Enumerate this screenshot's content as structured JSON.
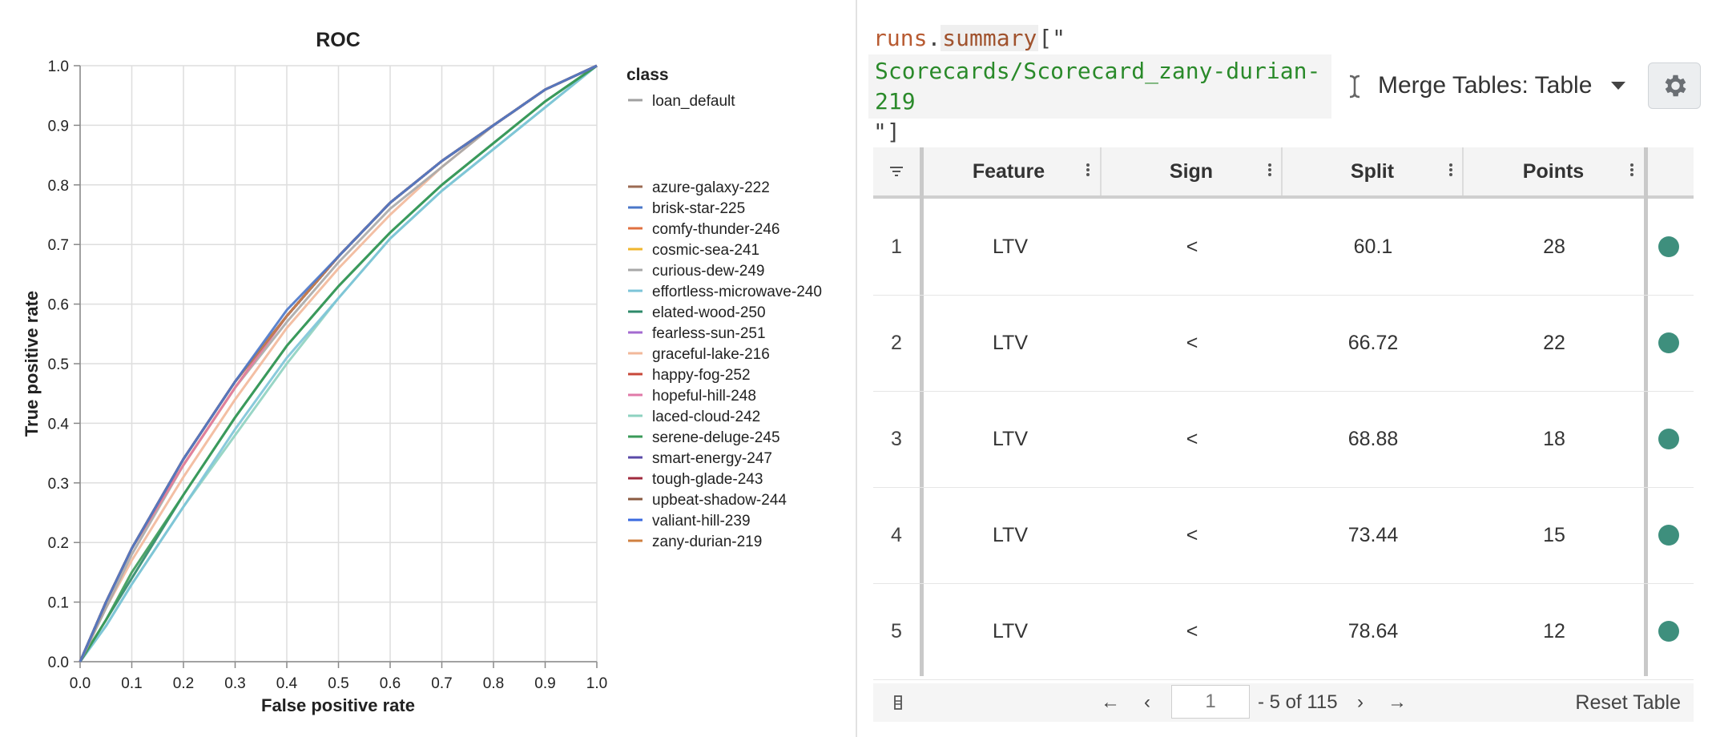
{
  "chart_data": {
    "type": "line",
    "title": "ROC",
    "xlabel": "False positive rate",
    "ylabel": "True positive rate",
    "xlim": [
      0,
      1
    ],
    "ylim": [
      0,
      1
    ],
    "xticks": [
      "0.0",
      "0.1",
      "0.2",
      "0.3",
      "0.4",
      "0.5",
      "0.6",
      "0.7",
      "0.8",
      "0.9",
      "1.0"
    ],
    "yticks": [
      "0.0",
      "0.1",
      "0.2",
      "0.3",
      "0.4",
      "0.5",
      "0.6",
      "0.7",
      "0.8",
      "0.9",
      "1.0"
    ],
    "grid": true,
    "legend_title": "class",
    "legend_placement": "right",
    "series": [
      {
        "name": "loan_default",
        "color": "#a0a0a0",
        "x": [],
        "y": []
      },
      {
        "name": "azure-galaxy-222",
        "color": "#9c6b53",
        "x": [
          0,
          0.05,
          0.1,
          0.2,
          0.3,
          0.4,
          0.5,
          0.6,
          0.7,
          0.8,
          0.9,
          1.0
        ],
        "y": [
          0,
          0.1,
          0.19,
          0.34,
          0.47,
          0.58,
          0.68,
          0.77,
          0.84,
          0.9,
          0.96,
          1.0
        ]
      },
      {
        "name": "brisk-star-225",
        "color": "#4a77c9",
        "x": [
          0,
          0.05,
          0.1,
          0.2,
          0.3,
          0.4,
          0.5,
          0.6,
          0.7,
          0.8,
          0.9,
          1.0
        ],
        "y": [
          0,
          0.1,
          0.19,
          0.34,
          0.47,
          0.59,
          0.68,
          0.77,
          0.84,
          0.9,
          0.96,
          1.0
        ]
      },
      {
        "name": "comfy-thunder-246",
        "color": "#e07040",
        "x": [
          0,
          0.05,
          0.1,
          0.2,
          0.3,
          0.4,
          0.5,
          0.6,
          0.7,
          0.8,
          0.9,
          1.0
        ],
        "y": [
          0,
          0.1,
          0.19,
          0.34,
          0.47,
          0.58,
          0.68,
          0.77,
          0.84,
          0.9,
          0.96,
          1.0
        ]
      },
      {
        "name": "cosmic-sea-241",
        "color": "#f0b62e",
        "x": [
          0,
          0.05,
          0.1,
          0.2,
          0.3,
          0.4,
          0.5,
          0.6,
          0.7,
          0.8,
          0.9,
          1.0
        ],
        "y": [
          0,
          0.1,
          0.19,
          0.33,
          0.46,
          0.58,
          0.68,
          0.77,
          0.84,
          0.9,
          0.96,
          1.0
        ]
      },
      {
        "name": "curious-dew-249",
        "color": "#a8a8a8",
        "x": [
          0,
          0.05,
          0.1,
          0.2,
          0.3,
          0.4,
          0.5,
          0.6,
          0.7,
          0.8,
          0.9,
          1.0
        ],
        "y": [
          0,
          0.09,
          0.18,
          0.33,
          0.46,
          0.57,
          0.67,
          0.76,
          0.83,
          0.9,
          0.96,
          1.0
        ]
      },
      {
        "name": "effortless-microwave-240",
        "color": "#7cc4d8",
        "x": [
          0,
          0.05,
          0.1,
          0.2,
          0.3,
          0.4,
          0.5,
          0.6,
          0.7,
          0.8,
          0.9,
          1.0
        ],
        "y": [
          0,
          0.06,
          0.13,
          0.26,
          0.39,
          0.51,
          0.61,
          0.71,
          0.79,
          0.86,
          0.93,
          1.0
        ]
      },
      {
        "name": "elated-wood-250",
        "color": "#2e8a6a",
        "x": [
          0,
          0.05,
          0.1,
          0.2,
          0.3,
          0.4,
          0.5,
          0.6,
          0.7,
          0.8,
          0.9,
          1.0
        ],
        "y": [
          0,
          0.07,
          0.14,
          0.28,
          0.41,
          0.53,
          0.63,
          0.72,
          0.8,
          0.87,
          0.94,
          1.0
        ]
      },
      {
        "name": "fearless-sun-251",
        "color": "#a46ad0",
        "x": [
          0,
          0.05,
          0.1,
          0.2,
          0.3,
          0.4,
          0.5,
          0.6,
          0.7,
          0.8,
          0.9,
          1.0
        ],
        "y": [
          0,
          0.1,
          0.19,
          0.34,
          0.47,
          0.58,
          0.68,
          0.77,
          0.84,
          0.9,
          0.96,
          1.0
        ]
      },
      {
        "name": "graceful-lake-216",
        "color": "#f2b89a",
        "x": [
          0,
          0.05,
          0.1,
          0.2,
          0.3,
          0.4,
          0.5,
          0.6,
          0.7,
          0.8,
          0.9,
          1.0
        ],
        "y": [
          0,
          0.09,
          0.17,
          0.31,
          0.44,
          0.56,
          0.66,
          0.75,
          0.83,
          0.9,
          0.96,
          1.0
        ]
      },
      {
        "name": "happy-fog-252",
        "color": "#c8483a",
        "x": [
          0,
          0.05,
          0.1,
          0.2,
          0.3,
          0.4,
          0.5,
          0.6,
          0.7,
          0.8,
          0.9,
          1.0
        ],
        "y": [
          0,
          0.1,
          0.19,
          0.34,
          0.47,
          0.58,
          0.68,
          0.77,
          0.84,
          0.9,
          0.96,
          1.0
        ]
      },
      {
        "name": "hopeful-hill-248",
        "color": "#e07aa8",
        "x": [
          0,
          0.05,
          0.1,
          0.2,
          0.3,
          0.4,
          0.5,
          0.6,
          0.7,
          0.8,
          0.9,
          1.0
        ],
        "y": [
          0,
          0.1,
          0.19,
          0.33,
          0.46,
          0.58,
          0.68,
          0.77,
          0.84,
          0.9,
          0.96,
          1.0
        ]
      },
      {
        "name": "laced-cloud-242",
        "color": "#8ed2c0",
        "x": [
          0,
          0.05,
          0.1,
          0.2,
          0.3,
          0.4,
          0.5,
          0.6,
          0.7,
          0.8,
          0.9,
          1.0
        ],
        "y": [
          0,
          0.06,
          0.13,
          0.26,
          0.38,
          0.5,
          0.61,
          0.71,
          0.79,
          0.86,
          0.93,
          1.0
        ]
      },
      {
        "name": "serene-deluge-245",
        "color": "#3a9a58",
        "x": [
          0,
          0.05,
          0.1,
          0.2,
          0.3,
          0.4,
          0.5,
          0.6,
          0.7,
          0.8,
          0.9,
          1.0
        ],
        "y": [
          0,
          0.07,
          0.15,
          0.28,
          0.41,
          0.53,
          0.63,
          0.72,
          0.8,
          0.87,
          0.94,
          1.0
        ]
      },
      {
        "name": "smart-energy-247",
        "color": "#5a4aa8",
        "x": [
          0,
          0.05,
          0.1,
          0.2,
          0.3,
          0.4,
          0.5,
          0.6,
          0.7,
          0.8,
          0.9,
          1.0
        ],
        "y": [
          0,
          0.1,
          0.19,
          0.34,
          0.47,
          0.58,
          0.68,
          0.77,
          0.84,
          0.9,
          0.96,
          1.0
        ]
      },
      {
        "name": "tough-glade-243",
        "color": "#a02a3e",
        "x": [
          0,
          0.05,
          0.1,
          0.2,
          0.3,
          0.4,
          0.5,
          0.6,
          0.7,
          0.8,
          0.9,
          1.0
        ],
        "y": [
          0,
          0.1,
          0.19,
          0.34,
          0.47,
          0.58,
          0.68,
          0.77,
          0.84,
          0.9,
          0.96,
          1.0
        ]
      },
      {
        "name": "upbeat-shadow-244",
        "color": "#8a5a40",
        "x": [
          0,
          0.05,
          0.1,
          0.2,
          0.3,
          0.4,
          0.5,
          0.6,
          0.7,
          0.8,
          0.9,
          1.0
        ],
        "y": [
          0,
          0.1,
          0.19,
          0.34,
          0.47,
          0.58,
          0.68,
          0.77,
          0.84,
          0.9,
          0.96,
          1.0
        ]
      },
      {
        "name": "valiant-hill-239",
        "color": "#3a6ae0",
        "x": [
          0,
          0.05,
          0.1,
          0.2,
          0.3,
          0.4,
          0.5,
          0.6,
          0.7,
          0.8,
          0.9,
          1.0
        ],
        "y": [
          0,
          0.1,
          0.19,
          0.34,
          0.47,
          0.58,
          0.68,
          0.77,
          0.84,
          0.9,
          0.96,
          1.0
        ]
      },
      {
        "name": "zany-durian-219",
        "color": "#d08040",
        "x": [
          0,
          0.05,
          0.1,
          0.2,
          0.3,
          0.4,
          0.5,
          0.6,
          0.7,
          0.8,
          0.9,
          1.0
        ],
        "y": [
          0,
          0.1,
          0.19,
          0.34,
          0.47,
          0.58,
          0.68,
          0.77,
          0.84,
          0.9,
          0.96,
          1.0
        ]
      }
    ]
  },
  "code": {
    "object": "runs",
    "dot": ".",
    "property": "summary",
    "open": "[\"",
    "string_line1": "Scorecards/Scorecard_zany-durian-",
    "string_line2": "219",
    "close": "\"]"
  },
  "merge_select": {
    "label": "Merge Tables: Table",
    "icon": "chevron-down-icon"
  },
  "settings": {
    "icon": "gear-icon"
  },
  "table": {
    "columns": [
      "Feature",
      "Sign",
      "Split",
      "Points"
    ],
    "rows": [
      {
        "index": "1",
        "feature": "LTV",
        "sign": "<",
        "split": "60.1",
        "points": "28"
      },
      {
        "index": "2",
        "feature": "LTV",
        "sign": "<",
        "split": "66.72",
        "points": "22"
      },
      {
        "index": "3",
        "feature": "LTV",
        "sign": "<",
        "split": "68.88",
        "points": "18"
      },
      {
        "index": "4",
        "feature": "LTV",
        "sign": "<",
        "split": "73.44",
        "points": "15"
      },
      {
        "index": "5",
        "feature": "LTV",
        "sign": "<",
        "split": "78.64",
        "points": "12"
      }
    ],
    "dot_color": "#3e8f7d"
  },
  "pager": {
    "first_label": "←",
    "prev_label": "‹",
    "page_value": "",
    "page_placeholder": "1",
    "range_text": "- 5 of 115",
    "next_label": "›",
    "last_label": "→",
    "reset_label": "Reset Table"
  }
}
